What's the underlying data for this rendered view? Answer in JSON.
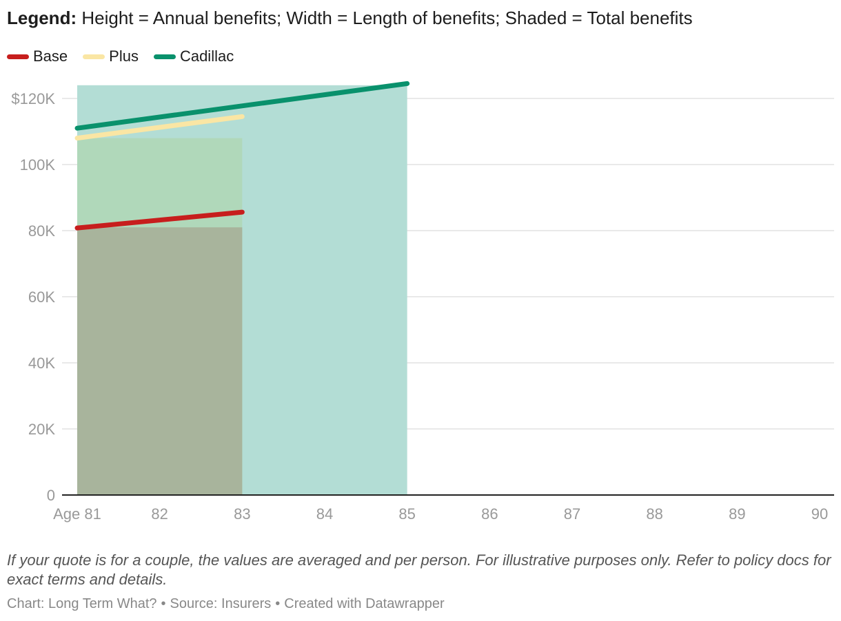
{
  "header": {
    "legend_label": "Legend:",
    "legend_text": "Height = Annual benefits; Width = Length of benefits; Shaded = Total benefits"
  },
  "legend": [
    {
      "name": "Base",
      "color": "#c71e1d"
    },
    {
      "name": "Plus",
      "color": "#fae6a4"
    },
    {
      "name": "Cadillac",
      "color": "#09916c"
    }
  ],
  "chart_data": {
    "type": "area",
    "x_ticks": [
      "Age 81",
      "82",
      "83",
      "84",
      "85",
      "86",
      "87",
      "88",
      "89",
      "90"
    ],
    "x_range": [
      81,
      90
    ],
    "y_ticks": [
      "$120K",
      "100K",
      "80K",
      "60K",
      "40K",
      "20K",
      "0"
    ],
    "y_tick_values": [
      120000,
      100000,
      80000,
      60000,
      40000,
      20000,
      0
    ],
    "ylim": [
      0,
      120000
    ],
    "grid": true,
    "series": [
      {
        "name": "Cadillac",
        "color": "#09916c",
        "fill": "#b3ddd5",
        "start_age": 81,
        "end_age": 85,
        "fill_value": 124000,
        "line": [
          [
            81,
            111000
          ],
          [
            85,
            124500
          ]
        ]
      },
      {
        "name": "Plus",
        "color": "#fae6a4",
        "fill": "#b0d8ba",
        "start_age": 81,
        "end_age": 83,
        "fill_value": 108000,
        "line": [
          [
            81,
            108000
          ],
          [
            83,
            114500
          ]
        ]
      },
      {
        "name": "Base",
        "color": "#c71e1d",
        "fill": "#a8b49c",
        "start_age": 81,
        "end_age": 83,
        "fill_value": 81000,
        "line": [
          [
            81,
            80800
          ],
          [
            83,
            85600
          ]
        ]
      }
    ]
  },
  "footnote": "If your quote is for a couple, the values are averaged and per person. For illustrative purposes only. Refer to policy docs for exact terms and details.",
  "credits": {
    "chart": "Chart: Long Term What?",
    "source": "Source: Insurers",
    "tool": "Created with Datawrapper",
    "separator": "•"
  }
}
